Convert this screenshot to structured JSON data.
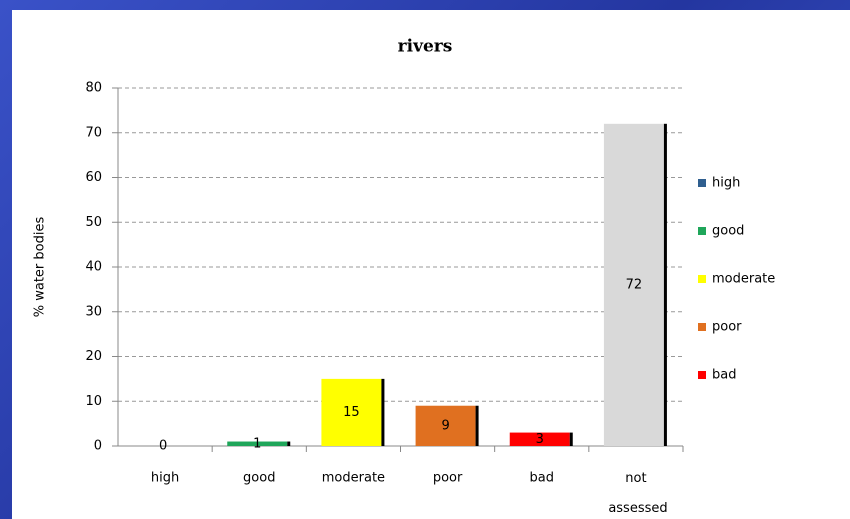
{
  "chart_data": {
    "type": "bar",
    "title": "rivers",
    "y_label": "% water bodies",
    "categories": [
      "high",
      "good",
      "moderate",
      "poor",
      "bad",
      "not assessed"
    ],
    "values": [
      0,
      1,
      15,
      9,
      3,
      72
    ],
    "colors": [
      "#2f5f8f",
      "#1fa65a",
      "#ffff00",
      "#e07020",
      "#ff0000",
      "#d9d9d9"
    ],
    "ylim": [
      0,
      80
    ],
    "yticks": [
      0,
      10,
      20,
      30,
      40,
      50,
      60,
      70,
      80
    ],
    "grid": true,
    "legend": [
      {
        "name": "high",
        "color": "#2f5f8f"
      },
      {
        "name": "good",
        "color": "#1fa65a"
      },
      {
        "name": "moderate",
        "color": "#ffff00"
      },
      {
        "name": "poor",
        "color": "#e07020"
      },
      {
        "name": "bad",
        "color": "#ff0000"
      }
    ],
    "legend_position": "right"
  }
}
